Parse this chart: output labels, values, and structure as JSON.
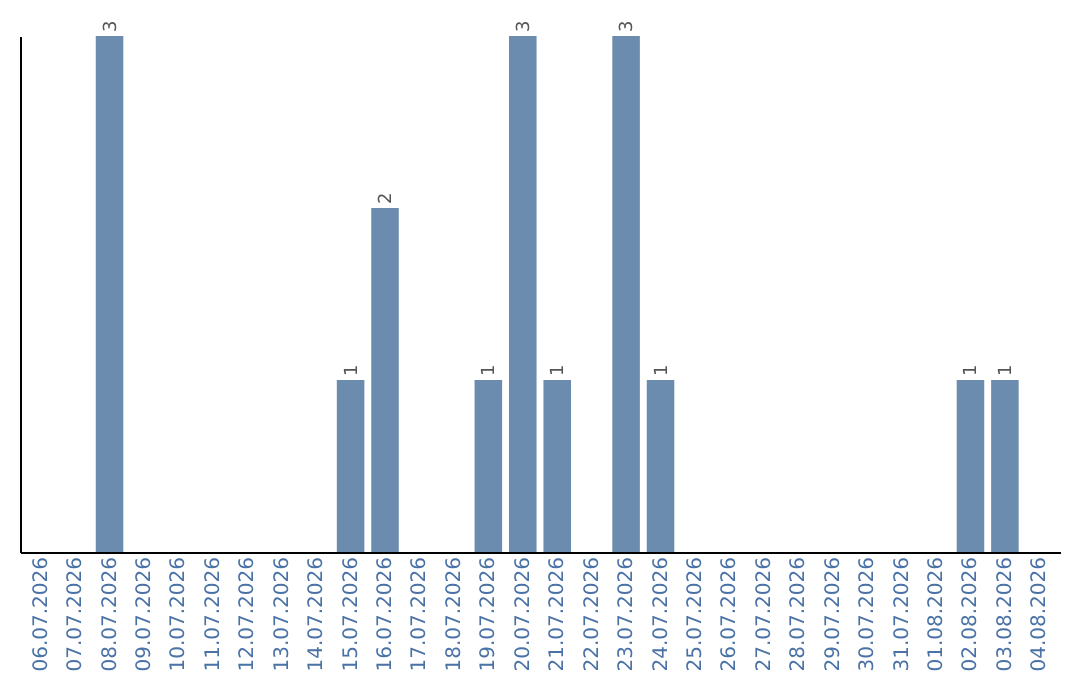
{
  "chart_data": {
    "type": "bar",
    "categories": [
      "06.07.2026",
      "07.07.2026",
      "08.07.2026",
      "09.07.2026",
      "10.07.2026",
      "11.07.2026",
      "12.07.2026",
      "13.07.2026",
      "14.07.2026",
      "15.07.2026",
      "16.07.2026",
      "17.07.2026",
      "18.07.2026",
      "19.07.2026",
      "20.07.2026",
      "21.07.2026",
      "22.07.2026",
      "23.07.2026",
      "24.07.2026",
      "25.07.2026",
      "26.07.2026",
      "27.07.2026",
      "28.07.2026",
      "29.07.2026",
      "30.07.2026",
      "31.07.2026",
      "01.08.2026",
      "02.08.2026",
      "03.08.2026",
      "04.08.2026"
    ],
    "values": [
      0,
      0,
      3,
      0,
      0,
      0,
      0,
      0,
      0,
      1,
      2,
      0,
      0,
      1,
      3,
      1,
      0,
      3,
      1,
      0,
      0,
      0,
      0,
      0,
      0,
      0,
      0,
      1,
      1,
      0
    ],
    "value_labels": [
      null,
      null,
      "3",
      null,
      null,
      null,
      null,
      null,
      null,
      "1",
      "2",
      null,
      null,
      "1",
      "3",
      "1",
      null,
      "3",
      "1",
      null,
      null,
      null,
      null,
      null,
      null,
      null,
      null,
      "1",
      "1",
      null
    ],
    "color": "#6b8cae",
    "ylim": [
      0,
      3
    ],
    "tick_labels": "x",
    "grid": false
  }
}
